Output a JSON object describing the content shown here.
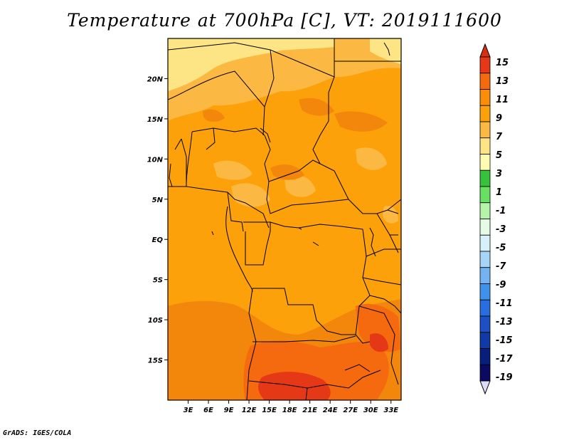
{
  "title": "Temperature at 700hPa [C], VT: 2019111600",
  "credit": "GrADS: IGES/COLA",
  "map": {
    "lon_range": [
      0,
      34.5
    ],
    "lat_range": [
      -20,
      25
    ],
    "x_ticks": [
      "3E",
      "6E",
      "9E",
      "12E",
      "15E",
      "18E",
      "21E",
      "24E",
      "27E",
      "30E",
      "33E"
    ],
    "y_ticks": [
      "20N",
      "15N",
      "10N",
      "5N",
      "EQ",
      "5S",
      "10S",
      "15S"
    ],
    "base_color": "#fda10a"
  },
  "colorbar": {
    "labels": [
      "15",
      "13",
      "11",
      "9",
      "7",
      "5",
      "3",
      "1",
      "-1",
      "-3",
      "-5",
      "-7",
      "-9",
      "-11",
      "-13",
      "-15",
      "-17",
      "-19"
    ],
    "colors": [
      "#e53816",
      "#f56a0f",
      "#fd8c0a",
      "#fda10a",
      "#fbb842",
      "#fde586",
      "#fefcb0",
      "#36c23c",
      "#68e062",
      "#b4f5a8",
      "#e6fbe6",
      "#d8f0fa",
      "#a5d5f7",
      "#74b3f2",
      "#3f92ec",
      "#276fe0",
      "#1b50c6",
      "#0f3aa8",
      "#081e7c",
      "#0a0a62"
    ],
    "arrow_top": "#d8300e",
    "arrow_bottom": "#dcdcf8"
  }
}
